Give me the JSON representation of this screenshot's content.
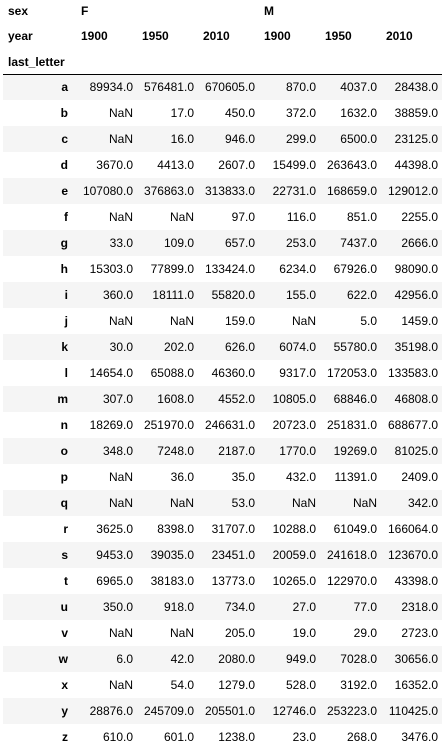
{
  "header": {
    "level0_name": "sex",
    "level1_name": "year",
    "index_name": "last_letter",
    "groups": [
      "F",
      "M"
    ],
    "years": [
      "1900",
      "1950",
      "2010",
      "1900",
      "1950",
      "2010"
    ]
  },
  "rows": [
    {
      "letter": "a",
      "values": [
        "89934.0",
        "576481.0",
        "670605.0",
        "870.0",
        "4037.0",
        "28438.0"
      ]
    },
    {
      "letter": "b",
      "values": [
        "NaN",
        "17.0",
        "450.0",
        "372.0",
        "1632.0",
        "38859.0"
      ]
    },
    {
      "letter": "c",
      "values": [
        "NaN",
        "16.0",
        "946.0",
        "299.0",
        "6500.0",
        "23125.0"
      ]
    },
    {
      "letter": "d",
      "values": [
        "3670.0",
        "4413.0",
        "2607.0",
        "15499.0",
        "263643.0",
        "44398.0"
      ]
    },
    {
      "letter": "e",
      "values": [
        "107080.0",
        "376863.0",
        "313833.0",
        "22731.0",
        "168659.0",
        "129012.0"
      ]
    },
    {
      "letter": "f",
      "values": [
        "NaN",
        "NaN",
        "97.0",
        "116.0",
        "851.0",
        "2255.0"
      ]
    },
    {
      "letter": "g",
      "values": [
        "33.0",
        "109.0",
        "657.0",
        "253.0",
        "7437.0",
        "2666.0"
      ]
    },
    {
      "letter": "h",
      "values": [
        "15303.0",
        "77899.0",
        "133424.0",
        "6234.0",
        "67926.0",
        "98090.0"
      ]
    },
    {
      "letter": "i",
      "values": [
        "360.0",
        "18111.0",
        "55820.0",
        "155.0",
        "622.0",
        "42956.0"
      ]
    },
    {
      "letter": "j",
      "values": [
        "NaN",
        "NaN",
        "159.0",
        "NaN",
        "5.0",
        "1459.0"
      ]
    },
    {
      "letter": "k",
      "values": [
        "30.0",
        "202.0",
        "626.0",
        "6074.0",
        "55780.0",
        "35198.0"
      ]
    },
    {
      "letter": "l",
      "values": [
        "14654.0",
        "65088.0",
        "46360.0",
        "9317.0",
        "172053.0",
        "133583.0"
      ]
    },
    {
      "letter": "m",
      "values": [
        "307.0",
        "1608.0",
        "4552.0",
        "10805.0",
        "68846.0",
        "46808.0"
      ]
    },
    {
      "letter": "n",
      "values": [
        "18269.0",
        "251970.0",
        "246631.0",
        "20723.0",
        "251831.0",
        "688677.0"
      ]
    },
    {
      "letter": "o",
      "values": [
        "348.0",
        "7248.0",
        "2187.0",
        "1770.0",
        "19269.0",
        "81025.0"
      ]
    },
    {
      "letter": "p",
      "values": [
        "NaN",
        "36.0",
        "35.0",
        "432.0",
        "11391.0",
        "2409.0"
      ]
    },
    {
      "letter": "q",
      "values": [
        "NaN",
        "NaN",
        "53.0",
        "NaN",
        "NaN",
        "342.0"
      ]
    },
    {
      "letter": "r",
      "values": [
        "3625.0",
        "8398.0",
        "31707.0",
        "10288.0",
        "61049.0",
        "166064.0"
      ]
    },
    {
      "letter": "s",
      "values": [
        "9453.0",
        "39035.0",
        "23451.0",
        "20059.0",
        "241618.0",
        "123670.0"
      ]
    },
    {
      "letter": "t",
      "values": [
        "6965.0",
        "38183.0",
        "13773.0",
        "10265.0",
        "122970.0",
        "43398.0"
      ]
    },
    {
      "letter": "u",
      "values": [
        "350.0",
        "918.0",
        "734.0",
        "27.0",
        "77.0",
        "2318.0"
      ]
    },
    {
      "letter": "v",
      "values": [
        "NaN",
        "NaN",
        "205.0",
        "19.0",
        "29.0",
        "2723.0"
      ]
    },
    {
      "letter": "w",
      "values": [
        "6.0",
        "42.0",
        "2080.0",
        "949.0",
        "7028.0",
        "30656.0"
      ]
    },
    {
      "letter": "x",
      "values": [
        "NaN",
        "54.0",
        "1279.0",
        "528.0",
        "3192.0",
        "16352.0"
      ]
    },
    {
      "letter": "y",
      "values": [
        "28876.0",
        "245709.0",
        "205501.0",
        "12746.0",
        "253223.0",
        "110425.0"
      ]
    },
    {
      "letter": "z",
      "values": [
        "610.0",
        "601.0",
        "1238.0",
        "23.0",
        "268.0",
        "3476.0"
      ]
    }
  ]
}
